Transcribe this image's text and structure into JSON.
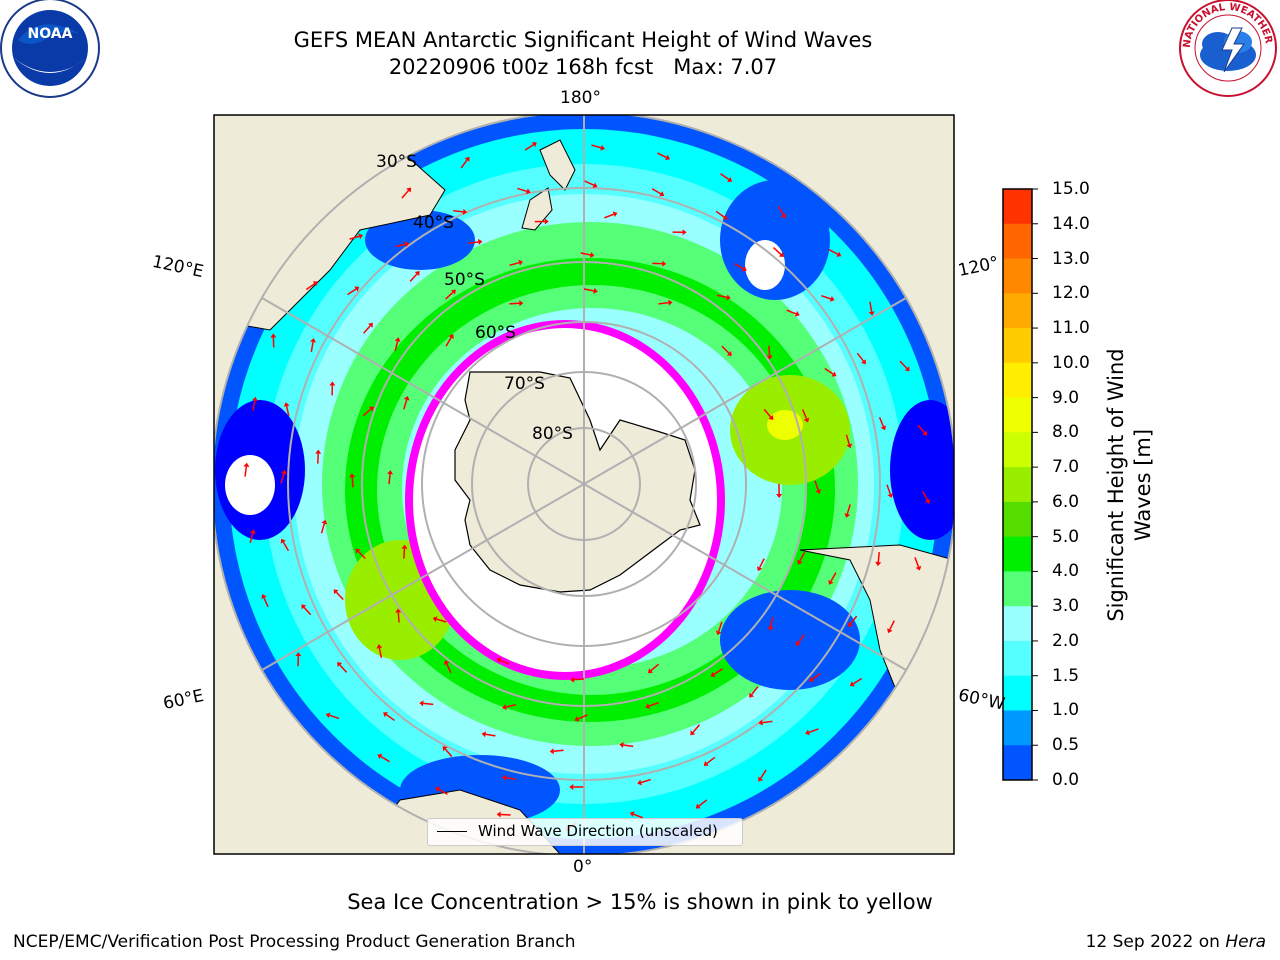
{
  "title": {
    "line1": "GEFS MEAN Antarctic Significant Height of Wind Waves",
    "line2": "20220906 t00z 168h fcst   Max: 7.07"
  },
  "map": {
    "projection": "south-polar-stereographic",
    "longitude_labels": {
      "top": "180°",
      "bottom": "0°",
      "upper_left": "120°E",
      "lower_left": "60°E",
      "upper_right": "120°",
      "lower_right": "60°W"
    },
    "latitude_labels": [
      "30°S",
      "40°S",
      "50°S",
      "60°S",
      "70°S",
      "80°S"
    ],
    "legend_label": "Wind Wave Direction (unscaled)",
    "sea_ice_note": "Sea Ice Concentration > 15% is shown in pink to yellow",
    "arrow_color": "#ff0000",
    "land_color": "#efebd9",
    "sea_ice_colors": [
      "#ff00ff",
      "#ffb000"
    ]
  },
  "colorbar": {
    "label_line1": "Significant Height of Wind",
    "label_line2": "Waves [m]",
    "ticks": [
      "15.0",
      "14.0",
      "13.0",
      "12.0",
      "11.0",
      "10.0",
      "9.0",
      "8.0",
      "7.0",
      "6.0",
      "5.0",
      "4.0",
      "3.0",
      "2.0",
      "1.5",
      "1.0",
      "0.5",
      "0.0"
    ],
    "colors": [
      "#ff0000",
      "#ff3300",
      "#ff6600",
      "#ff8800",
      "#ffaa00",
      "#ffcc00",
      "#ffee00",
      "#eeff00",
      "#ccff00",
      "#99ee00",
      "#55dd00",
      "#00ee00",
      "#55ff77",
      "#99ffff",
      "#55ffff",
      "#00ffff",
      "#0099ff",
      "#0055ff",
      "#0000ff"
    ]
  },
  "logos": {
    "noaa_text": "NOAA",
    "nws_text": "NATIONAL WEATHER SERVICE"
  },
  "footer": {
    "left": "NCEP/EMC/Verification Post Processing Product Generation Branch",
    "right_date": "12 Sep 2022 on ",
    "right_host": "Hera"
  }
}
